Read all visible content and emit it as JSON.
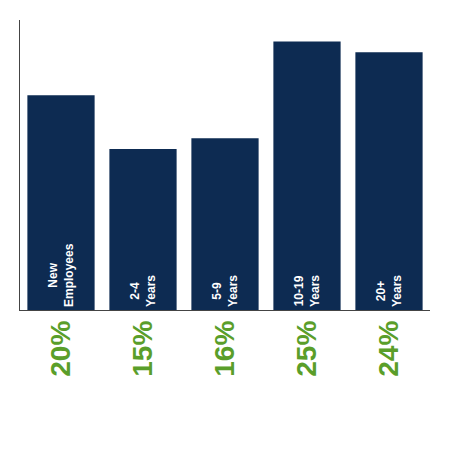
{
  "chart_data": {
    "type": "bar",
    "categories": [
      "New\nEmployees",
      "2-4\nYears",
      "5-9\nYears",
      "10-19\nYears",
      "20+\nYears"
    ],
    "values": [
      20,
      15,
      16,
      25,
      24
    ],
    "value_labels": [
      "20%",
      "15%",
      "16%",
      "25%",
      "24%"
    ],
    "data_labels": true,
    "color": "#0d2b52",
    "ylim": [
      0,
      27
    ],
    "grid": false,
    "tick_labels": false
  }
}
